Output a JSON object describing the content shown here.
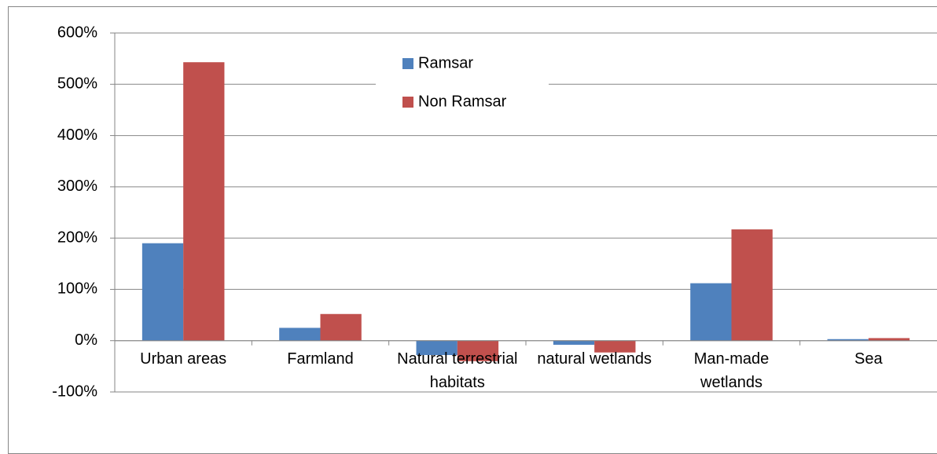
{
  "chart_data": {
    "type": "bar",
    "categories": [
      "Urban areas",
      "Farmland",
      "Natural terrestrial habitats",
      "natural wetlands",
      "Man-made wetlands",
      "Sea"
    ],
    "series": [
      {
        "name": "Ramsar",
        "color": "#4f81bd",
        "values": [
          190,
          25,
          -28,
          -8,
          112,
          3
        ]
      },
      {
        "name": "Non Ramsar",
        "color": "#c0504d",
        "values": [
          543,
          52,
          -40,
          -23,
          217,
          5
        ]
      }
    ],
    "ylim": [
      -100,
      600
    ],
    "yticks": [
      {
        "value": -100,
        "label": "-100%"
      },
      {
        "value": 0,
        "label": "0%"
      },
      {
        "value": 100,
        "label": "100%"
      },
      {
        "value": 200,
        "label": "200%"
      },
      {
        "value": 300,
        "label": "300%"
      },
      {
        "value": 400,
        "label": "400%"
      },
      {
        "value": 500,
        "label": "500%"
      },
      {
        "value": 600,
        "label": "600%"
      }
    ],
    "grid": true
  }
}
